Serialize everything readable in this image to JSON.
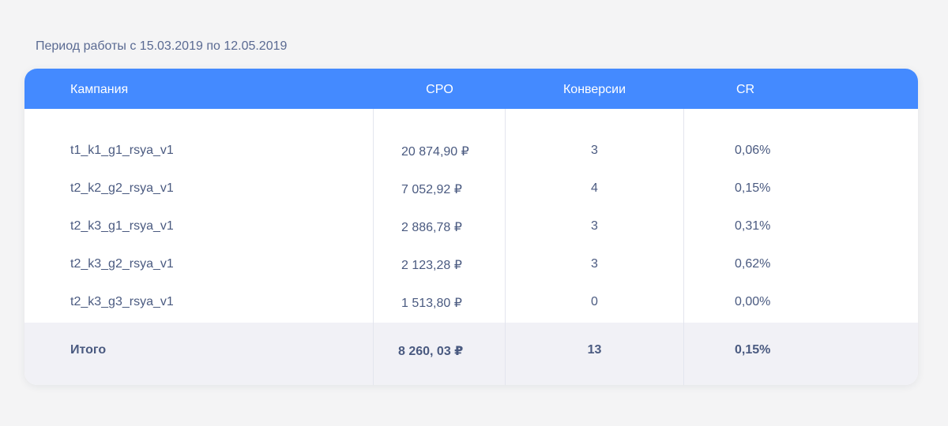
{
  "period": "Период работы с 15.03.2019 по 12.05.2019",
  "table": {
    "headers": {
      "campaign": "Кампания",
      "cpo": "CPO",
      "conversions": "Конверсии",
      "cr": "CR"
    },
    "rows": [
      {
        "campaign": "t1_k1_g1_rsya_v1",
        "cpo": "20 874,90 ₽",
        "conversions": "3",
        "cr": "0,06%"
      },
      {
        "campaign": "t2_k2_g2_rsya_v1",
        "cpo": "7 052,92 ₽",
        "conversions": "4",
        "cr": "0,15%"
      },
      {
        "campaign": "t2_k3_g1_rsya_v1",
        "cpo": "2 886,78 ₽",
        "conversions": "3",
        "cr": "0,31%"
      },
      {
        "campaign": "t2_k3_g2_rsya_v1",
        "cpo": "2 123,28 ₽",
        "conversions": "3",
        "cr": "0,62%"
      },
      {
        "campaign": "t2_k3_g3_rsya_v1",
        "cpo": "1 513,80 ₽",
        "conversions": "0",
        "cr": "0,00%"
      }
    ],
    "total": {
      "label": "Итого",
      "cpo": "8 260, 03 ₽",
      "conversions": "13",
      "cr": "0,15%"
    }
  },
  "colors": {
    "header_bg": "#448aff",
    "page_bg": "#f4f4f5",
    "total_bg": "#f1f1f6",
    "text": "#4a5a80"
  }
}
